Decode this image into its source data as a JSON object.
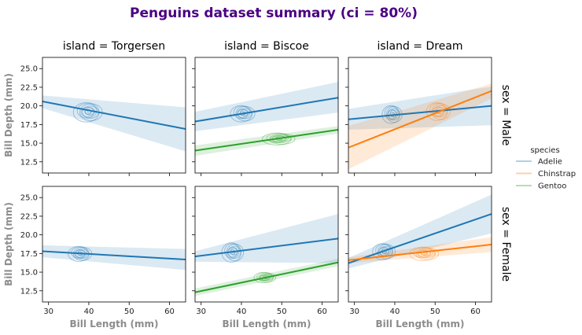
{
  "chart_data": {
    "type": "scatter",
    "title": "Penguins dataset summary (ci = 80%)",
    "title_color": "#4b0082",
    "xlabel": "Bill Length (mm)",
    "ylabel": "Bill Depth (mm)",
    "axis_label_color": "#8c8c8c",
    "xlim": [
      28.5,
      64
    ],
    "ylim": [
      11,
      26.5
    ],
    "xticks": [
      30,
      40,
      50,
      60
    ],
    "yticks": [
      12.5,
      15.0,
      17.5,
      20.0,
      22.5,
      25.0
    ],
    "ytick_labels": [
      "12.5",
      "15.0",
      "17.5",
      "20.0",
      "22.5",
      "25.0"
    ],
    "grid": false,
    "columns": [
      {
        "label": "island = Torgersen"
      },
      {
        "label": "island = Biscoe"
      },
      {
        "label": "island = Dream"
      }
    ],
    "rows": [
      {
        "label": "sex = Male"
      },
      {
        "label": "sex = Female"
      }
    ],
    "legend": {
      "title": "species",
      "placement": "right",
      "entries": [
        {
          "name": "Adelie",
          "color": "#1f77b4"
        },
        {
          "name": "Chinstrap",
          "color": "#ff7f0e"
        },
        {
          "name": "Gentoo",
          "color": "#2ca02c"
        }
      ]
    },
    "panels": [
      {
        "row": 0,
        "col": 0,
        "series": [
          {
            "species": "Adelie",
            "kde_center": [
              40,
              19.2
            ],
            "kde_spread": [
              3.2,
              1.3
            ],
            "fit": {
              "x": [
                28.5,
                64
              ],
              "y": [
                20.6,
                16.9
              ],
              "ci_low_end": [
                19.7,
                13.9
              ],
              "ci_high_end": [
                21.4,
                19.8
              ]
            }
          }
        ]
      },
      {
        "row": 0,
        "col": 1,
        "series": [
          {
            "species": "Adelie",
            "kde_center": [
              40.5,
              19.0
            ],
            "kde_spread": [
              2.7,
              1.1
            ],
            "fit": {
              "x": [
                28.5,
                64
              ],
              "y": [
                17.9,
                21.1
              ],
              "ci_low_end": [
                16.6,
                19.1
              ],
              "ci_high_end": [
                19.2,
                23.2
              ]
            }
          },
          {
            "species": "Gentoo",
            "kde_center": [
              49.5,
              15.6
            ],
            "kde_spread": [
              3.6,
              0.8
            ],
            "fit": {
              "x": [
                28.5,
                64
              ],
              "y": [
                14.0,
                16.8
              ],
              "ci_low_end": [
                13.3,
                16.3
              ],
              "ci_high_end": [
                14.7,
                17.3
              ]
            }
          }
        ]
      },
      {
        "row": 0,
        "col": 2,
        "series": [
          {
            "species": "Adelie",
            "kde_center": [
              39.5,
              18.9
            ],
            "kde_spread": [
              2.2,
              1.2
            ],
            "fit": {
              "x": [
                28.5,
                64
              ],
              "y": [
                18.2,
                20.0
              ],
              "ci_low_end": [
                16.8,
                17.4
              ],
              "ci_high_end": [
                19.6,
                22.6
              ]
            }
          },
          {
            "species": "Chinstrap",
            "kde_center": [
              51,
              19.3
            ],
            "kde_spread": [
              2.6,
              1.2
            ],
            "fit": {
              "x": [
                28.5,
                64
              ],
              "y": [
                14.4,
                22.0
              ],
              "ci_low_end": [
                11.5,
                21.0
              ],
              "ci_high_end": [
                17.3,
                23.0
              ]
            }
          }
        ]
      },
      {
        "row": 1,
        "col": 0,
        "series": [
          {
            "species": "Adelie",
            "kde_center": [
              38,
              17.5
            ],
            "kde_spread": [
              2.6,
              1.0
            ],
            "fit": {
              "x": [
                28.5,
                64
              ],
              "y": [
                17.8,
                16.7
              ],
              "ci_low_end": [
                17.0,
                15.3
              ],
              "ci_high_end": [
                18.6,
                18.1
              ]
            }
          }
        ]
      },
      {
        "row": 1,
        "col": 1,
        "series": [
          {
            "species": "Adelie",
            "kde_center": [
              38,
              17.7
            ],
            "kde_spread": [
              2.4,
              1.3
            ],
            "fit": {
              "x": [
                28.5,
                64
              ],
              "y": [
                17.1,
                19.5
              ],
              "ci_low_end": [
                16.4,
                16.2
              ],
              "ci_high_end": [
                17.8,
                22.8
              ]
            }
          },
          {
            "species": "Gentoo",
            "kde_center": [
              46,
              14.3
            ],
            "kde_spread": [
              2.4,
              0.7
            ],
            "fit": {
              "x": [
                28.5,
                64
              ],
              "y": [
                12.3,
                16.3
              ],
              "ci_low_end": [
                11.8,
                15.8
              ],
              "ci_high_end": [
                12.8,
                16.8
              ]
            }
          }
        ]
      },
      {
        "row": 1,
        "col": 2,
        "series": [
          {
            "species": "Adelie",
            "kde_center": [
              37.5,
              17.8
            ],
            "kde_spread": [
              2.5,
              1.1
            ],
            "fit": {
              "x": [
                28.5,
                64
              ],
              "y": [
                16.2,
                22.8
              ],
              "ci_low_end": [
                15.5,
                20.2
              ],
              "ci_high_end": [
                16.9,
                25.4
              ]
            }
          },
          {
            "species": "Chinstrap",
            "kde_center": [
              47.5,
              17.5
            ],
            "kde_spread": [
              3.2,
              0.9
            ],
            "fit": {
              "x": [
                28.5,
                64
              ],
              "y": [
                16.6,
                18.7
              ],
              "ci_low_end": [
                16.2,
                17.7
              ],
              "ci_high_end": [
                17.0,
                19.7
              ]
            }
          }
        ]
      }
    ]
  }
}
